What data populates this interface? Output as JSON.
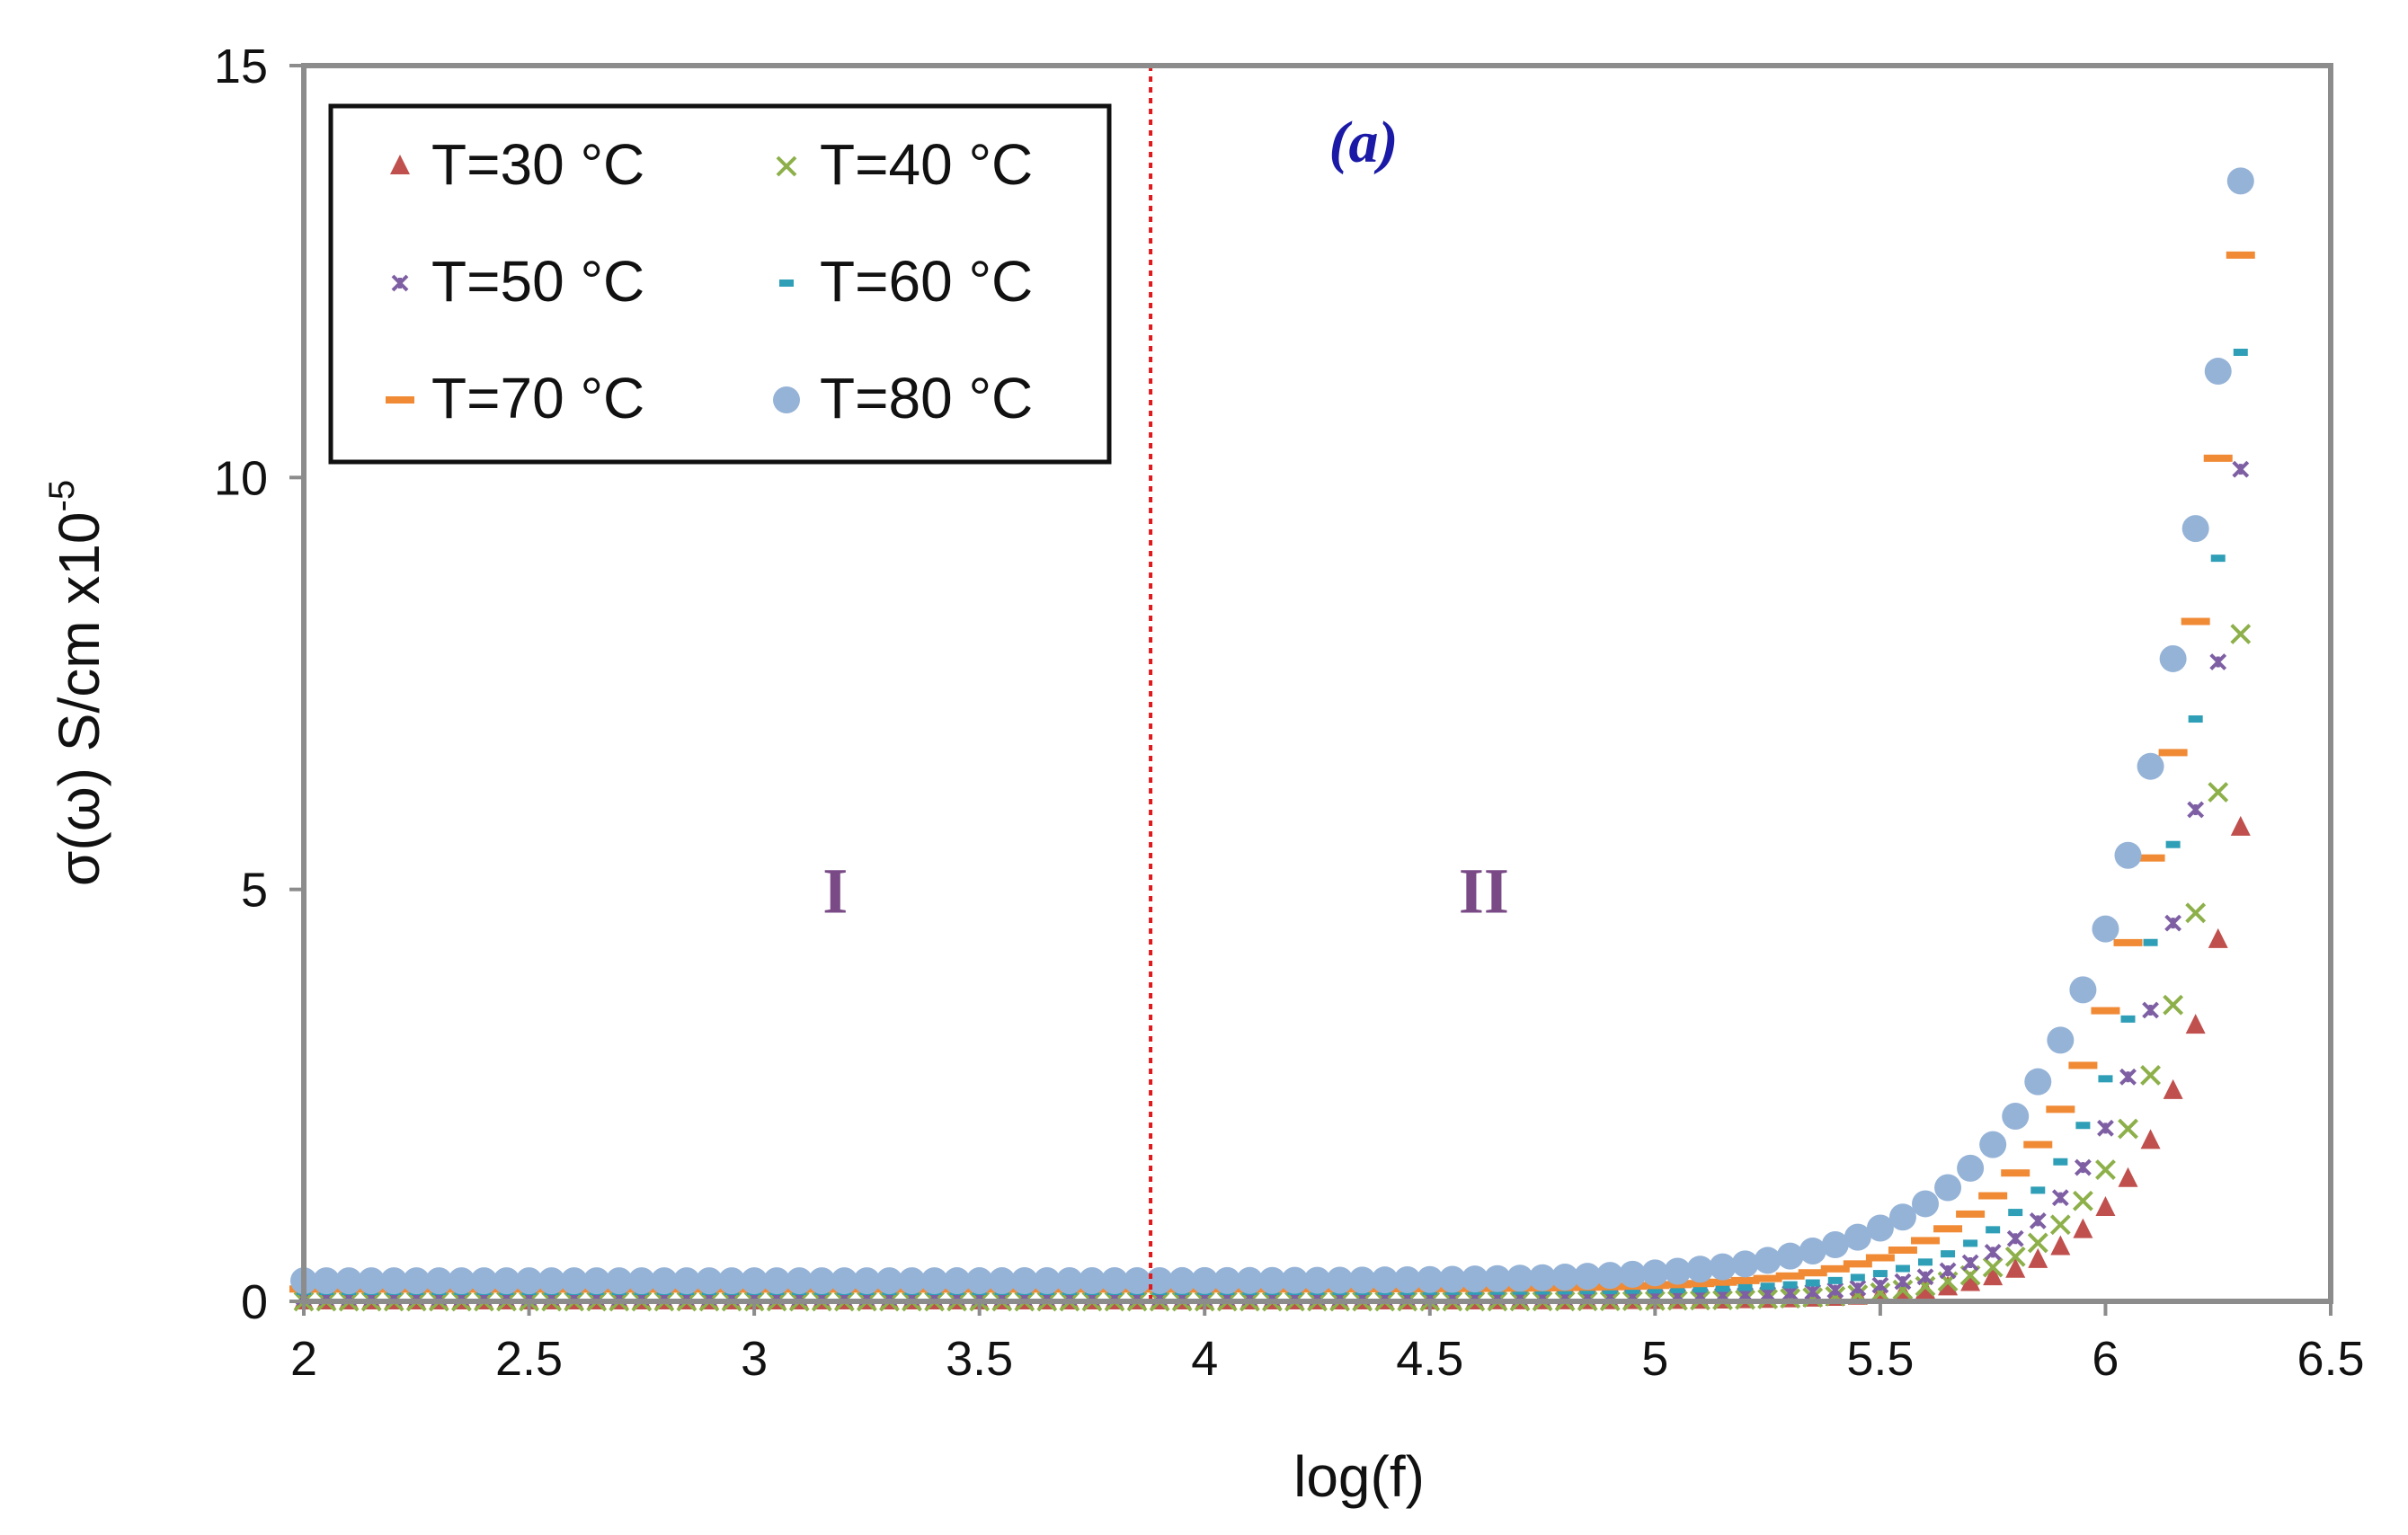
{
  "chart_data": {
    "type": "scatter",
    "title": "",
    "panel_label": "(a)",
    "xlabel": "log(f)",
    "ylabel": "σ(ω) S/cm x10",
    "ylabel_exponent": "-5",
    "xlim": [
      2,
      6.5
    ],
    "ylim": [
      0,
      15
    ],
    "xticks": [
      "2",
      "2.5",
      "3",
      "3.5",
      "4",
      "4.5",
      "5",
      "5.5",
      "6",
      "6.5"
    ],
    "yticks": [
      "0",
      "5",
      "10",
      "15"
    ],
    "grid": false,
    "legend_position": "top-left",
    "divider_x": 3.88,
    "divider_color": "#e0191c",
    "regions": [
      {
        "label": "I",
        "x": 3.18,
        "y": 5.0
      },
      {
        "label": "II",
        "x": 4.62,
        "y": 5.0
      }
    ],
    "region_color": "#7a4a86",
    "panel_label_color": "#1a1aa6",
    "x_range_points": {
      "start": 2.0,
      "end": 6.3,
      "count": 87
    },
    "series": [
      {
        "name": "T=30 °C",
        "marker": "triangle",
        "color": "#c0504d",
        "base": 0.0,
        "amplitude": 5.75,
        "exponent": 2.35
      },
      {
        "name": "T=40 °C",
        "marker": "x",
        "color": "#8db04a",
        "base": 0.0,
        "amplitude": 8.1,
        "exponent": 2.35
      },
      {
        "name": "T=50 °C",
        "marker": "star",
        "color": "#7e5fa3",
        "base": 0.05,
        "amplitude": 10.05,
        "exponent": 2.3
      },
      {
        "name": "T=60 °C",
        "marker": "dash",
        "color": "#2f9fb7",
        "base": 0.12,
        "amplitude": 11.4,
        "exponent": 2.15
      },
      {
        "name": "T=70 °C",
        "marker": "bar",
        "color": "#f08a35",
        "base": 0.15,
        "amplitude": 12.55,
        "exponent": 1.9
      },
      {
        "name": "T=80 °C",
        "marker": "circle",
        "color": "#95b3d7",
        "base": 0.25,
        "amplitude": 13.35,
        "exponent": 1.65
      }
    ]
  }
}
